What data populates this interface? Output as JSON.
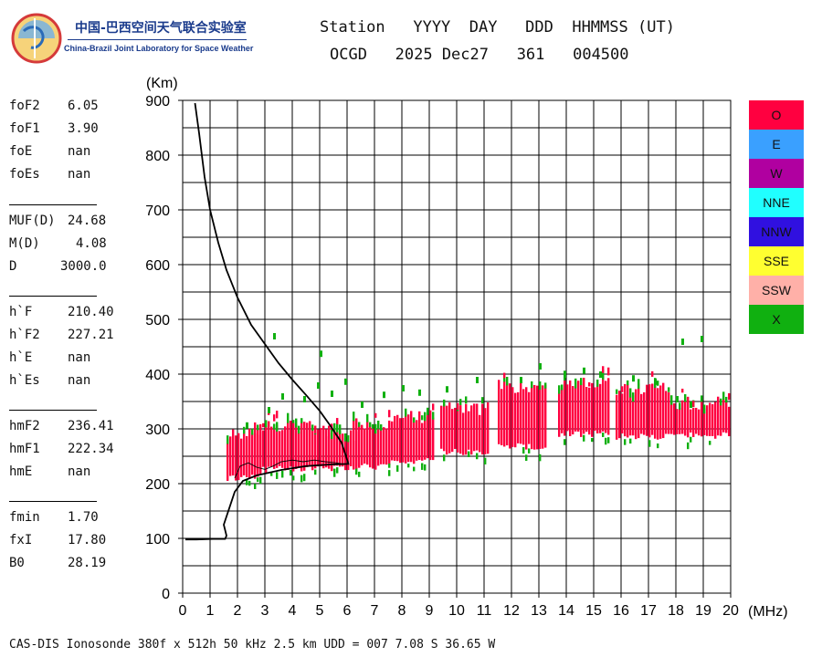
{
  "logo": {
    "cn": "中国-巴西空间天气联合实验室",
    "en": "China-Brazil Joint Laboratory for Space Weather"
  },
  "header": {
    "line1": "Station   YYYY  DAY   DDD  HHMMSS (UT)",
    "line2": "OCGD   2025 Dec27   361   004500"
  },
  "params": {
    "group1": [
      {
        "name": "foF2",
        "value": "6.05"
      },
      {
        "name": "foF1",
        "value": "3.90"
      },
      {
        "name": "foE",
        "value": "nan"
      },
      {
        "name": "foEs",
        "value": "nan"
      }
    ],
    "group2": [
      {
        "name": "MUF(D)",
        "value": "24.68"
      },
      {
        "name": "M(D)",
        "value": "4.08"
      },
      {
        "name": "D",
        "value": "3000.0"
      }
    ],
    "group3": [
      {
        "name": "h`F",
        "value": "210.40"
      },
      {
        "name": "h`F2",
        "value": "227.21"
      },
      {
        "name": "h`E",
        "value": "nan"
      },
      {
        "name": "h`Es",
        "value": "nan"
      }
    ],
    "group4": [
      {
        "name": "hmF2",
        "value": "236.41"
      },
      {
        "name": "hmF1",
        "value": "222.34"
      },
      {
        "name": "hmE",
        "value": "nan"
      }
    ],
    "group5": [
      {
        "name": "fmin",
        "value": "1.70"
      },
      {
        "name": "fxI",
        "value": "17.80"
      },
      {
        "name": "B0",
        "value": "28.19"
      }
    ]
  },
  "legend": [
    {
      "label": "O",
      "color": "#ff0040"
    },
    {
      "label": "E",
      "color": "#3aa0ff"
    },
    {
      "label": "W",
      "color": "#b000a0"
    },
    {
      "label": "NNE",
      "color": "#20ffff"
    },
    {
      "label": "NNW",
      "color": "#3010e0"
    },
    {
      "label": "SSE",
      "color": "#ffff30"
    },
    {
      "label": "SSW",
      "color": "#ffb0a8"
    },
    {
      "label": "X",
      "color": "#10b010"
    }
  ],
  "footer": "CAS-DIS Ionosonde 380f x 512h 50 kHz 2.5 km UDD = 007 7.08 S 36.65 W",
  "chart_data": {
    "type": "scatter",
    "title": "",
    "xlabel": "(MHz)",
    "ylabel": "(Km)",
    "xlim": [
      0,
      20
    ],
    "ylim": [
      0,
      900
    ],
    "xticks": [
      0,
      1,
      2,
      3,
      4,
      5,
      6,
      7,
      8,
      9,
      10,
      11,
      12,
      13,
      14,
      15,
      16,
      17,
      18,
      19,
      20
    ],
    "yticks": [
      0,
      100,
      200,
      300,
      400,
      500,
      600,
      700,
      800,
      900
    ],
    "grid": true,
    "o_trace_blocks": [
      {
        "f_start": 1.6,
        "f_end": 2.9,
        "h_low": 205,
        "h_high": 305
      },
      {
        "f_start": 2.6,
        "f_end": 4.2,
        "h_low": 220,
        "h_high": 320
      },
      {
        "f_start": 4.0,
        "f_end": 5.6,
        "h_low": 222,
        "h_high": 318
      },
      {
        "f_start": 5.2,
        "f_end": 6.4,
        "h_low": 222,
        "h_high": 300
      },
      {
        "f_start": 6.2,
        "f_end": 7.6,
        "h_low": 225,
        "h_high": 320
      },
      {
        "f_start": 7.5,
        "f_end": 9.2,
        "h_low": 235,
        "h_high": 335
      },
      {
        "f_start": 9.4,
        "f_end": 11.2,
        "h_low": 252,
        "h_high": 350
      },
      {
        "f_start": 11.5,
        "f_end": 13.3,
        "h_low": 262,
        "h_high": 390
      },
      {
        "f_start": 13.7,
        "f_end": 15.6,
        "h_low": 285,
        "h_high": 398
      },
      {
        "f_start": 15.8,
        "f_end": 17.8,
        "h_low": 280,
        "h_high": 385
      },
      {
        "f_start": 17.8,
        "f_end": 20.0,
        "h_low": 282,
        "h_high": 360
      }
    ],
    "x_trace_points": [
      [
        2.3,
        312
      ],
      [
        3.1,
        340
      ],
      [
        3.6,
        365
      ],
      [
        4.4,
        360
      ],
      [
        4.9,
        385
      ],
      [
        5.4,
        370
      ],
      [
        5.9,
        392
      ],
      [
        6.5,
        350
      ],
      [
        7.3,
        368
      ],
      [
        8.0,
        380
      ],
      [
        8.6,
        372
      ],
      [
        9.6,
        378
      ],
      [
        10.7,
        395
      ],
      [
        12.3,
        395
      ],
      [
        13.0,
        420
      ],
      [
        13.9,
        405
      ],
      [
        14.6,
        412
      ],
      [
        15.2,
        405
      ],
      [
        16.4,
        398
      ],
      [
        17.2,
        392
      ],
      [
        18.0,
        360
      ],
      [
        18.5,
        350
      ],
      [
        18.2,
        465
      ],
      [
        18.9,
        470
      ],
      [
        3.3,
        475
      ],
      [
        5.0,
        443
      ]
    ],
    "profile_curve": [
      [
        0.45,
        895
      ],
      [
        0.6,
        840
      ],
      [
        0.8,
        760
      ],
      [
        1.0,
        700
      ],
      [
        1.3,
        640
      ],
      [
        1.6,
        590
      ],
      [
        2.0,
        540
      ],
      [
        2.5,
        490
      ],
      [
        3.0,
        455
      ],
      [
        3.5,
        420
      ],
      [
        4.0,
        390
      ],
      [
        4.5,
        362
      ],
      [
        5.0,
        333
      ],
      [
        5.4,
        305
      ],
      [
        5.8,
        275
      ],
      [
        6.05,
        236
      ],
      [
        5.4,
        235
      ],
      [
        4.5,
        232
      ],
      [
        3.6,
        225
      ],
      [
        2.7,
        215
      ],
      [
        2.2,
        205
      ],
      [
        1.9,
        185
      ],
      [
        1.6,
        140
      ],
      [
        1.5,
        125
      ],
      [
        1.6,
        105
      ],
      [
        1.55,
        99
      ],
      [
        1.1,
        99
      ],
      [
        0.5,
        98
      ],
      [
        0.1,
        98
      ]
    ],
    "mid_trace": [
      [
        1.9,
        210
      ],
      [
        2.1,
        232
      ],
      [
        2.4,
        238
      ],
      [
        2.7,
        230
      ],
      [
        3.0,
        226
      ],
      [
        3.3,
        232
      ],
      [
        3.6,
        240
      ],
      [
        4.0,
        243
      ],
      [
        4.4,
        240
      ],
      [
        4.8,
        243
      ],
      [
        5.2,
        240
      ],
      [
        5.6,
        238
      ],
      [
        5.9,
        235
      ]
    ]
  }
}
